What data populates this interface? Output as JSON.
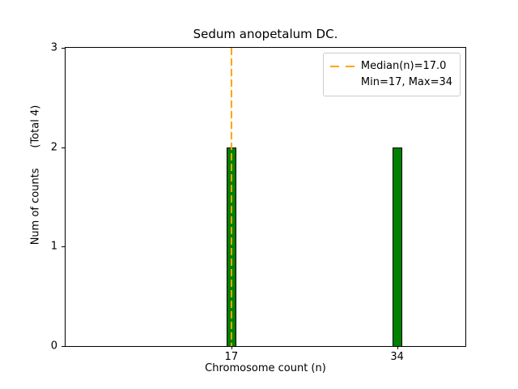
{
  "chart_data": {
    "type": "bar",
    "title": "Sedum anopetalum DC.",
    "xlabel": "Chromosome count (n)",
    "ylabel": "Num of counts      (Total 4)",
    "categories": [
      17,
      34
    ],
    "values": [
      2,
      2
    ],
    "total_counts": 4,
    "xlim": [
      0,
      41
    ],
    "ylim": [
      0,
      3
    ],
    "xticks": [
      17,
      34
    ],
    "yticks": [
      0,
      1,
      2,
      3
    ],
    "bar_color": "#008000",
    "bar_edge_color": "#000000",
    "bar_width_units": 1,
    "median_line": {
      "x": 17,
      "color": "#FFA500",
      "style": "dashed"
    },
    "legend": {
      "position": "upper right",
      "lines": [
        "Median(n)=17.0",
        "Min=17, Max=34"
      ]
    },
    "grid": false
  }
}
